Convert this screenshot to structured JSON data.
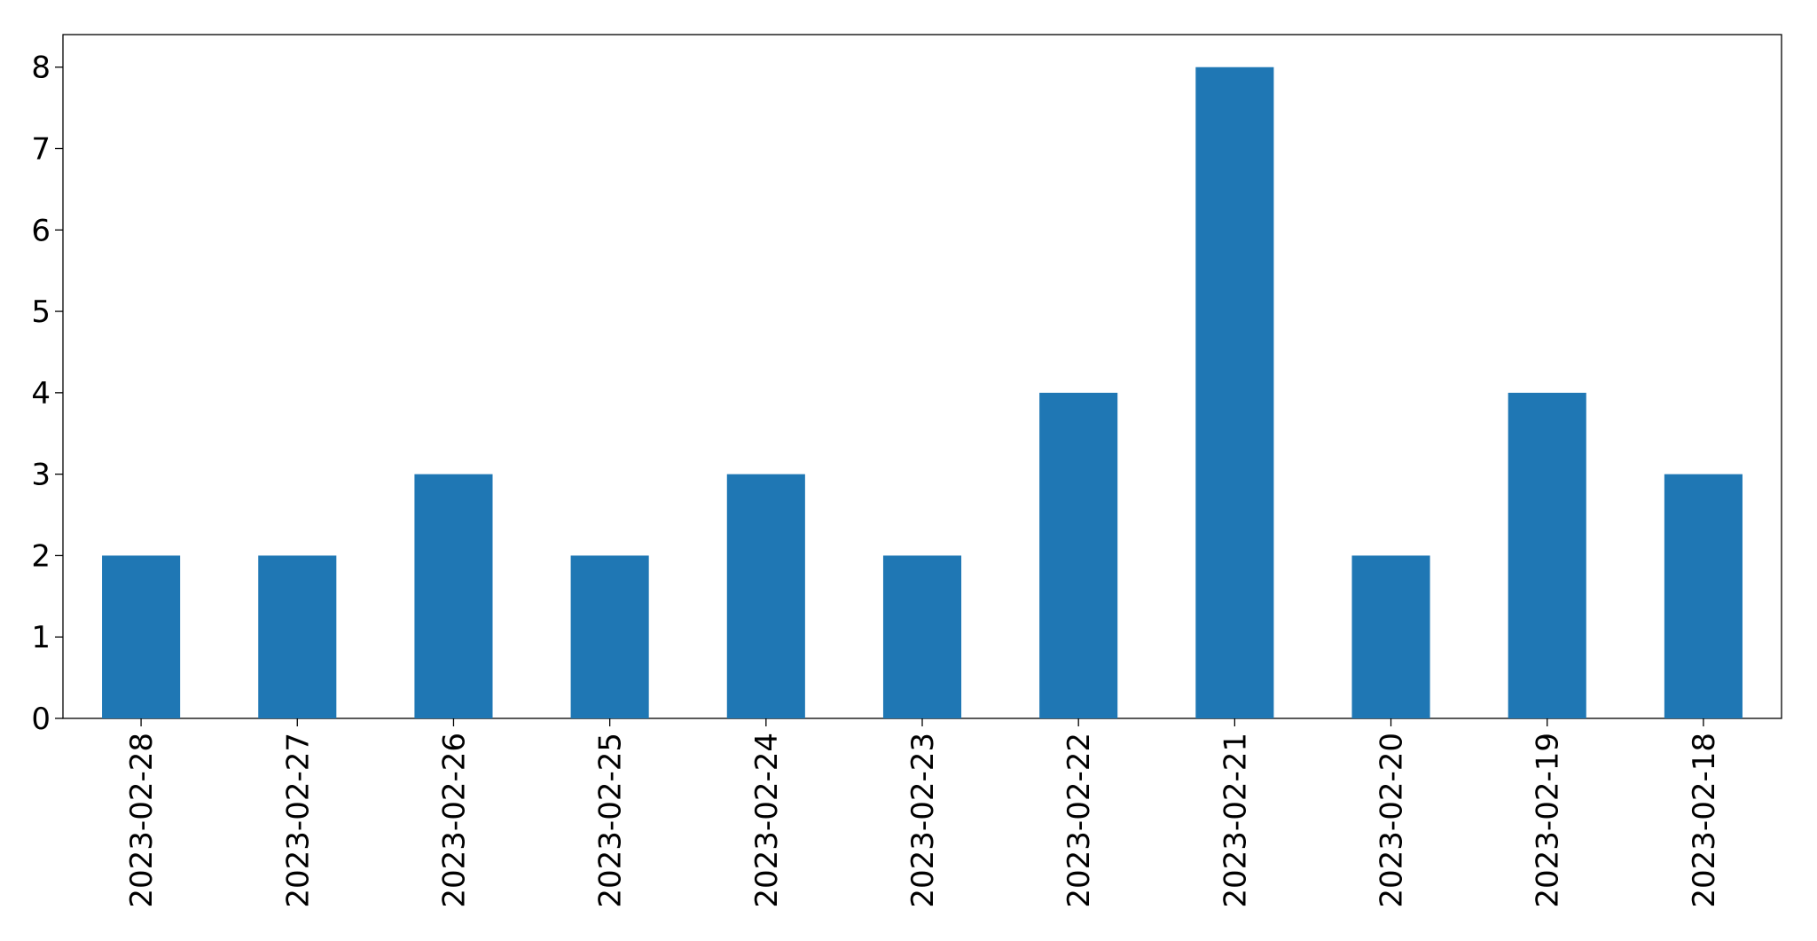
{
  "chart_data": {
    "type": "bar",
    "categories": [
      "2023-02-28",
      "2023-02-27",
      "2023-02-26",
      "2023-02-25",
      "2023-02-24",
      "2023-02-23",
      "2023-02-22",
      "2023-02-21",
      "2023-02-20",
      "2023-02-19",
      "2023-02-18"
    ],
    "values": [
      2,
      2,
      3,
      2,
      3,
      2,
      4,
      8,
      2,
      4,
      3
    ],
    "color": "#1f77b4",
    "ylim": [
      0,
      8.4
    ],
    "yticks": [
      0,
      1,
      2,
      3,
      4,
      5,
      6,
      7,
      8
    ],
    "grid": false
  }
}
